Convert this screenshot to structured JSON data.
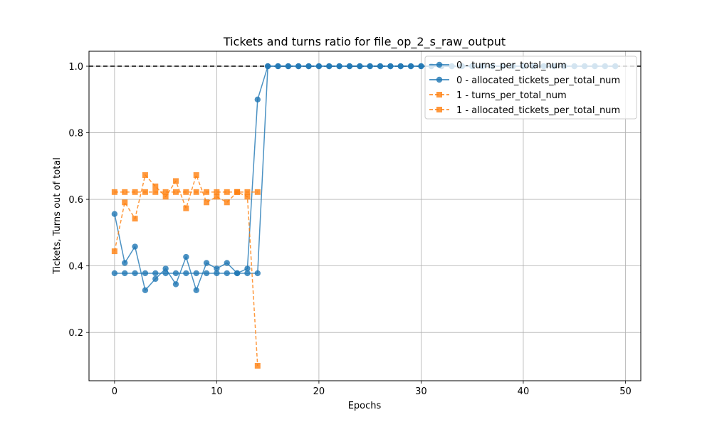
{
  "chart_data": {
    "type": "line",
    "title": "Tickets and turns ratio for file_op_2_s_raw_output",
    "xlabel": "Epochs",
    "ylabel": "Tickets, Turns out of total",
    "xlim": [
      -2.5,
      51.5
    ],
    "ylim": [
      0.055,
      1.045
    ],
    "xticks": [
      0,
      10,
      20,
      30,
      40,
      50
    ],
    "yticks": [
      0.2,
      0.4,
      0.6,
      0.8,
      1.0
    ],
    "xtick_labels": [
      "0",
      "10",
      "20",
      "30",
      "40",
      "50"
    ],
    "ytick_labels": [
      "0.2",
      "0.4",
      "0.6",
      "0.8",
      "1.0"
    ],
    "grid": true,
    "legend_position": "top-right",
    "reference_line": {
      "y": 1.0,
      "style": "dashed",
      "color": "#000000"
    },
    "series": [
      {
        "name": "0 - turns_per_total_num",
        "color": "#1f77b4",
        "marker": "circle",
        "linestyle": "solid",
        "x": [
          0,
          1,
          2,
          3,
          4,
          5,
          6,
          7,
          8,
          9,
          10,
          11,
          12,
          13,
          14,
          15,
          16,
          17,
          18,
          19,
          20,
          21,
          22,
          23,
          24,
          25,
          26,
          27,
          28,
          29,
          30,
          31,
          32,
          33,
          34,
          35,
          36,
          37,
          38,
          39,
          40,
          41,
          42,
          43,
          44,
          45,
          46,
          47,
          48,
          49
        ],
        "y": [
          0.556,
          0.409,
          0.458,
          0.327,
          0.361,
          0.392,
          0.345,
          0.427,
          0.327,
          0.409,
          0.392,
          0.409,
          0.378,
          0.392,
          0.9,
          1.0,
          1.0,
          1.0,
          1.0,
          1.0,
          1.0,
          1.0,
          1.0,
          1.0,
          1.0,
          1.0,
          1.0,
          1.0,
          1.0,
          1.0,
          1.0,
          1.0,
          1.0,
          1.0,
          1.0,
          1.0,
          1.0,
          1.0,
          1.0,
          1.0,
          1.0,
          1.0,
          1.0,
          1.0,
          1.0,
          1.0,
          1.0,
          1.0,
          1.0,
          1.0
        ]
      },
      {
        "name": "0 - allocated_tickets_per_total_num",
        "color": "#1f77b4",
        "marker": "circle",
        "linestyle": "solid",
        "x": [
          0,
          1,
          2,
          3,
          4,
          5,
          6,
          7,
          8,
          9,
          10,
          11,
          12,
          13,
          14,
          15,
          16,
          17,
          18,
          19,
          20,
          21,
          22,
          23,
          24,
          25,
          26,
          27,
          28,
          29,
          30,
          31,
          32,
          33,
          34,
          35,
          36,
          37,
          38,
          39,
          40,
          41,
          42,
          43,
          44,
          45,
          46,
          47,
          48,
          49
        ],
        "y": [
          0.378,
          0.378,
          0.378,
          0.378,
          0.378,
          0.378,
          0.378,
          0.378,
          0.378,
          0.378,
          0.378,
          0.378,
          0.378,
          0.378,
          0.378,
          1.0,
          1.0,
          1.0,
          1.0,
          1.0,
          1.0,
          1.0,
          1.0,
          1.0,
          1.0,
          1.0,
          1.0,
          1.0,
          1.0,
          1.0,
          1.0,
          1.0,
          1.0,
          1.0,
          1.0,
          1.0,
          1.0,
          1.0,
          1.0,
          1.0,
          1.0,
          1.0,
          1.0,
          1.0,
          1.0,
          1.0,
          1.0,
          1.0,
          1.0,
          1.0
        ]
      },
      {
        "name": "1 - turns_per_total_num",
        "color": "#ff7f0e",
        "marker": "square",
        "linestyle": "dashed",
        "x": [
          0,
          1,
          2,
          3,
          4,
          5,
          6,
          7,
          8,
          9,
          10,
          11,
          12,
          13,
          14
        ],
        "y": [
          0.444,
          0.591,
          0.542,
          0.673,
          0.639,
          0.608,
          0.655,
          0.573,
          0.673,
          0.591,
          0.608,
          0.591,
          0.622,
          0.608,
          0.1
        ]
      },
      {
        "name": "1 - allocated_tickets_per_total_num",
        "color": "#ff7f0e",
        "marker": "square",
        "linestyle": "dashed",
        "x": [
          0,
          1,
          2,
          3,
          4,
          5,
          6,
          7,
          8,
          9,
          10,
          11,
          12,
          13,
          14
        ],
        "y": [
          0.622,
          0.622,
          0.622,
          0.622,
          0.622,
          0.622,
          0.622,
          0.622,
          0.622,
          0.622,
          0.622,
          0.622,
          0.622,
          0.622,
          0.622
        ]
      }
    ]
  }
}
